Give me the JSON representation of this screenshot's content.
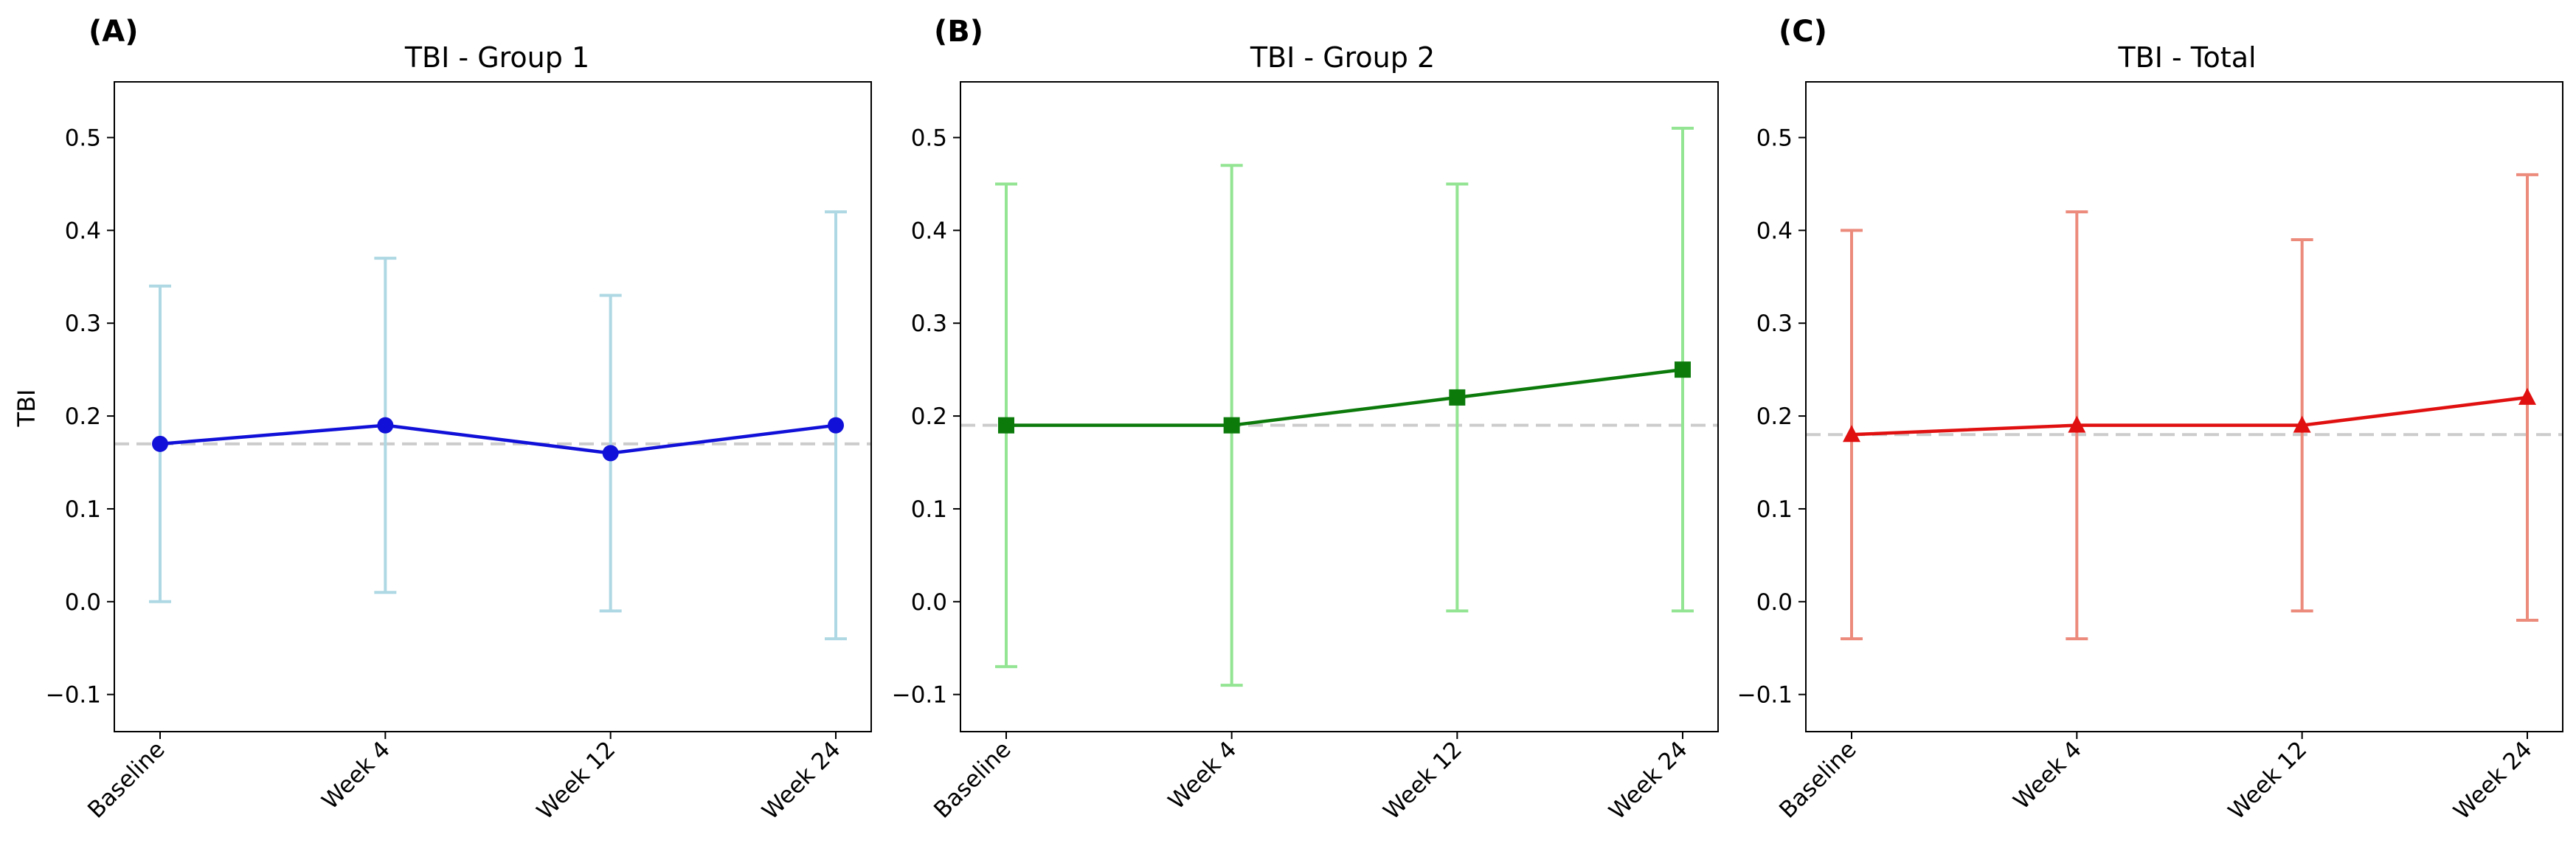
{
  "chart_data": [
    {
      "type": "line",
      "panel_label": "(A)",
      "title": "TBI - Group 1",
      "ylabel": "TBI",
      "categories": [
        "Baseline",
        "Week 4",
        "Week 12",
        "Week 24"
      ],
      "ylim": [
        -0.14,
        0.56
      ],
      "yticks": [
        -0.1,
        0.0,
        0.1,
        0.2,
        0.3,
        0.4,
        0.5
      ],
      "ytick_labels": [
        "−0.1",
        "0.0",
        "0.1",
        "0.2",
        "0.3",
        "0.4",
        "0.5"
      ],
      "marker": "circle",
      "series": [
        {
          "values": [
            0.17,
            0.19,
            0.16,
            0.19
          ],
          "err_low": [
            0.0,
            0.01,
            -0.01,
            -0.04
          ],
          "err_high": [
            0.34,
            0.37,
            0.33,
            0.42
          ]
        }
      ],
      "reference_line": 0.17,
      "colors": {
        "line": "#1010d8",
        "error": "#aed8e3"
      }
    },
    {
      "type": "line",
      "panel_label": "(B)",
      "title": "TBI - Group 2",
      "ylabel": "",
      "categories": [
        "Baseline",
        "Week 4",
        "Week 12",
        "Week 24"
      ],
      "ylim": [
        -0.14,
        0.56
      ],
      "yticks": [
        -0.1,
        0.0,
        0.1,
        0.2,
        0.3,
        0.4,
        0.5
      ],
      "ytick_labels": [
        "−0.1",
        "0.0",
        "0.1",
        "0.2",
        "0.3",
        "0.4",
        "0.5"
      ],
      "marker": "square",
      "series": [
        {
          "values": [
            0.19,
            0.19,
            0.22,
            0.25
          ],
          "err_low": [
            -0.07,
            -0.09,
            -0.01,
            -0.01
          ],
          "err_high": [
            0.45,
            0.47,
            0.45,
            0.51
          ]
        }
      ],
      "reference_line": 0.19,
      "colors": {
        "line": "#0b7a0b",
        "error": "#93e493"
      }
    },
    {
      "type": "line",
      "panel_label": "(C)",
      "title": "TBI - Total",
      "ylabel": "",
      "categories": [
        "Baseline",
        "Week 4",
        "Week 12",
        "Week 24"
      ],
      "ylim": [
        -0.14,
        0.56
      ],
      "yticks": [
        -0.1,
        0.0,
        0.1,
        0.2,
        0.3,
        0.4,
        0.5
      ],
      "ytick_labels": [
        "−0.1",
        "0.0",
        "0.1",
        "0.2",
        "0.3",
        "0.4",
        "0.5"
      ],
      "marker": "triangle",
      "series": [
        {
          "values": [
            0.18,
            0.19,
            0.19,
            0.22
          ],
          "err_low": [
            -0.04,
            -0.04,
            -0.01,
            -0.02
          ],
          "err_high": [
            0.4,
            0.42,
            0.39,
            0.46
          ]
        }
      ],
      "reference_line": 0.18,
      "colors": {
        "line": "#e01010",
        "error": "#ec8a7c"
      }
    }
  ],
  "grid": false,
  "colors": {
    "reference_line": "#cccccc",
    "axes": "#000000"
  }
}
